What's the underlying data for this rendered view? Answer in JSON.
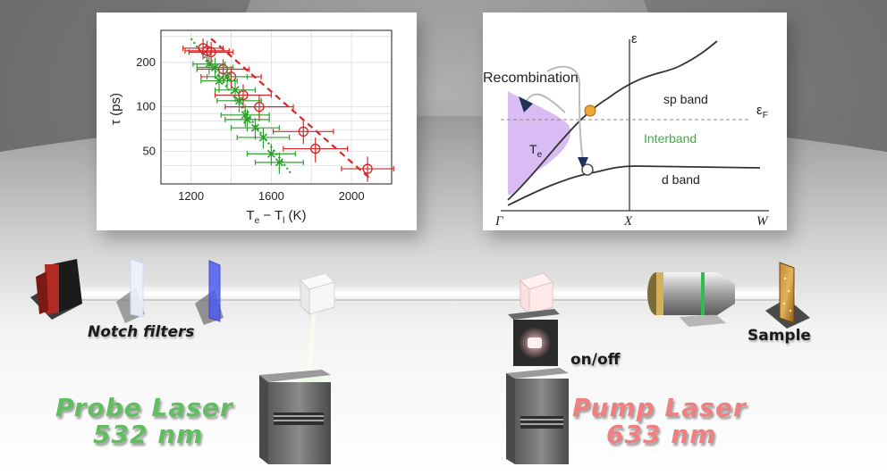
{
  "plot": {
    "ylabel": "τ (ps)",
    "xlabel_main": "T",
    "xlabel_sub_e": "e",
    "xlabel_minus": " − T",
    "xlabel_sub_l": "l",
    "xlabel_unit": " (K)",
    "xticks": [
      "1200",
      "1600",
      "2000"
    ],
    "yticks": [
      "50",
      "100",
      "200"
    ]
  },
  "chart_data": {
    "type": "scatter",
    "xlabel": "Te − Tl (K)",
    "ylabel": "τ (ps)",
    "xlim": [
      1050,
      2200
    ],
    "ylim": [
      30,
      330
    ],
    "yscale": "log",
    "grid": true,
    "series": [
      {
        "color": "#d62728",
        "marker": "circle",
        "x": [
          1260,
          1280,
          1300,
          1360,
          1400,
          1460,
          1540,
          1760,
          1820,
          2080
        ],
        "y": [
          250,
          240,
          235,
          180,
          160,
          120,
          100,
          68,
          52,
          38
        ],
        "xerr": [
          100,
          110,
          110,
          130,
          150,
          140,
          170,
          150,
          160,
          130
        ],
        "yerr": [
          40,
          40,
          40,
          30,
          28,
          22,
          20,
          12,
          10,
          8
        ],
        "fit": {
          "x": [
            1300,
            2100
          ],
          "y": [
            290,
            32
          ],
          "style": "dashed"
        }
      },
      {
        "color": "#2ca02c",
        "marker": "cross",
        "x": [
          1290,
          1320,
          1340,
          1380,
          1420,
          1440,
          1470,
          1480,
          1520,
          1560,
          1600,
          1640
        ],
        "y": [
          195,
          185,
          150,
          160,
          130,
          110,
          88,
          82,
          72,
          62,
          48,
          42
        ],
        "xerr": [
          80,
          90,
          90,
          100,
          100,
          110,
          120,
          110,
          120,
          130,
          120,
          120
        ],
        "yerr": [
          30,
          30,
          25,
          28,
          22,
          18,
          15,
          14,
          12,
          10,
          8,
          7
        ],
        "fit": {
          "x": [
            1200,
            1700
          ],
          "y": [
            290,
            35
          ],
          "style": "dotted"
        }
      }
    ]
  },
  "band": {
    "epsilon": "ε",
    "recombination": "Recombination",
    "te_main": "T",
    "te_sub": "e",
    "sp_band": "sp band",
    "eF_main": "ε",
    "eF_sub": "F",
    "interband": "Interband",
    "d_band": "d band",
    "gamma": "Γ",
    "x_point": "X",
    "w_point": "W",
    "colors": {
      "interband": "#3bb33b",
      "fill": "#d8b8f4",
      "arrow": "#1f3358",
      "occupied": "#f2a63a"
    }
  },
  "labels": {
    "notch_filters": "Notch filters",
    "probe_laser": "Probe Laser",
    "probe_wavelength": "532 nm",
    "pump_laser": "Pump Laser",
    "pump_wavelength": "633 nm",
    "on_off": "on/off",
    "sample": "Sample",
    "probe_color": "#5fbf5f",
    "pump_color": "#f07f7f"
  }
}
